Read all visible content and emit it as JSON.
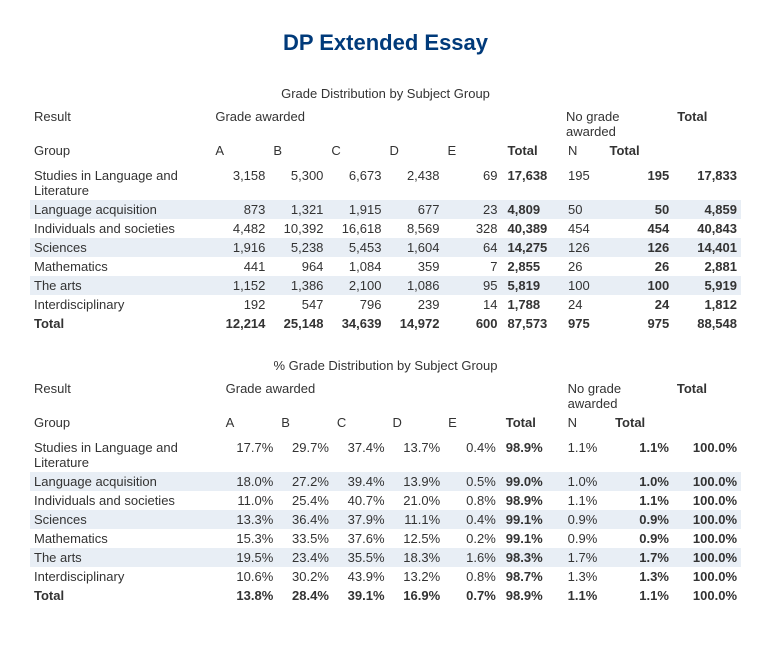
{
  "title": "DP Extended Essay",
  "table1": {
    "caption": "Grade Distribution by Subject Group",
    "header": {
      "result": "Result",
      "grade_awarded": "Grade awarded",
      "no_grade_awarded": "No grade awarded",
      "total": "Total",
      "group": "Group",
      "A": "A",
      "B": "B",
      "C": "C",
      "D": "D",
      "E": "E",
      "total_sub": "Total",
      "N": "N",
      "no_total": "Total"
    },
    "rows": [
      {
        "group": "Studies in Language and Literature",
        "A": "3,158",
        "B": "5,300",
        "C": "6,673",
        "D": "2,438",
        "E": "69",
        "gtotal": "17,638",
        "N": "195",
        "ntotal": "195",
        "total": "17,833",
        "shade": false
      },
      {
        "group": "Language acquisition",
        "A": "873",
        "B": "1,321",
        "C": "1,915",
        "D": "677",
        "E": "23",
        "gtotal": "4,809",
        "N": "50",
        "ntotal": "50",
        "total": "4,859",
        "shade": true
      },
      {
        "group": "Individuals and societies",
        "A": "4,482",
        "B": "10,392",
        "C": "16,618",
        "D": "8,569",
        "E": "328",
        "gtotal": "40,389",
        "N": "454",
        "ntotal": "454",
        "total": "40,843",
        "shade": false
      },
      {
        "group": "Sciences",
        "A": "1,916",
        "B": "5,238",
        "C": "5,453",
        "D": "1,604",
        "E": "64",
        "gtotal": "14,275",
        "N": "126",
        "ntotal": "126",
        "total": "14,401",
        "shade": true
      },
      {
        "group": "Mathematics",
        "A": "441",
        "B": "964",
        "C": "1,084",
        "D": "359",
        "E": "7",
        "gtotal": "2,855",
        "N": "26",
        "ntotal": "26",
        "total": "2,881",
        "shade": false
      },
      {
        "group": "The arts",
        "A": "1,152",
        "B": "1,386",
        "C": "2,100",
        "D": "1,086",
        "E": "95",
        "gtotal": "5,819",
        "N": "100",
        "ntotal": "100",
        "total": "5,919",
        "shade": true
      },
      {
        "group": "Interdisciplinary",
        "A": "192",
        "B": "547",
        "C": "796",
        "D": "239",
        "E": "14",
        "gtotal": "1,788",
        "N": "24",
        "ntotal": "24",
        "total": "1,812",
        "shade": false
      }
    ],
    "totals": {
      "group": "Total",
      "A": "12,214",
      "B": "25,148",
      "C": "34,639",
      "D": "14,972",
      "E": "600",
      "gtotal": "87,573",
      "N": "975",
      "ntotal": "975",
      "total": "88,548"
    }
  },
  "table2": {
    "caption": "% Grade Distribution by Subject Group",
    "header": {
      "result": "Result",
      "grade_awarded": "Grade awarded",
      "no_grade_awarded": "No grade awarded",
      "total": "Total",
      "group": "Group",
      "A": "A",
      "B": "B",
      "C": "C",
      "D": "D",
      "E": "E",
      "total_sub": "Total",
      "N": "N",
      "no_total": "Total"
    },
    "rows": [
      {
        "group": "Studies in Language and Literature",
        "A": "17.7%",
        "B": "29.7%",
        "C": "37.4%",
        "D": "13.7%",
        "E": "0.4%",
        "gtotal": "98.9%",
        "N": "1.1%",
        "ntotal": "1.1%",
        "total": "100.0%",
        "shade": false
      },
      {
        "group": "Language acquisition",
        "A": "18.0%",
        "B": "27.2%",
        "C": "39.4%",
        "D": "13.9%",
        "E": "0.5%",
        "gtotal": "99.0%",
        "N": "1.0%",
        "ntotal": "1.0%",
        "total": "100.0%",
        "shade": true
      },
      {
        "group": "Individuals and societies",
        "A": "11.0%",
        "B": "25.4%",
        "C": "40.7%",
        "D": "21.0%",
        "E": "0.8%",
        "gtotal": "98.9%",
        "N": "1.1%",
        "ntotal": "1.1%",
        "total": "100.0%",
        "shade": false
      },
      {
        "group": "Sciences",
        "A": "13.3%",
        "B": "36.4%",
        "C": "37.9%",
        "D": "11.1%",
        "E": "0.4%",
        "gtotal": "99.1%",
        "N": "0.9%",
        "ntotal": "0.9%",
        "total": "100.0%",
        "shade": true
      },
      {
        "group": "Mathematics",
        "A": "15.3%",
        "B": "33.5%",
        "C": "37.6%",
        "D": "12.5%",
        "E": "0.2%",
        "gtotal": "99.1%",
        "N": "0.9%",
        "ntotal": "0.9%",
        "total": "100.0%",
        "shade": false
      },
      {
        "group": "The arts",
        "A": "19.5%",
        "B": "23.4%",
        "C": "35.5%",
        "D": "18.3%",
        "E": "1.6%",
        "gtotal": "98.3%",
        "N": "1.7%",
        "ntotal": "1.7%",
        "total": "100.0%",
        "shade": true
      },
      {
        "group": "Interdisciplinary",
        "A": "10.6%",
        "B": "30.2%",
        "C": "43.9%",
        "D": "13.2%",
        "E": "0.8%",
        "gtotal": "98.7%",
        "N": "1.3%",
        "ntotal": "1.3%",
        "total": "100.0%",
        "shade": false
      }
    ],
    "totals": {
      "group": "Total",
      "A": "13.8%",
      "B": "28.4%",
      "C": "39.1%",
      "D": "16.9%",
      "E": "0.7%",
      "gtotal": "98.9%",
      "N": "1.1%",
      "ntotal": "1.1%",
      "total": "100.0%"
    }
  }
}
